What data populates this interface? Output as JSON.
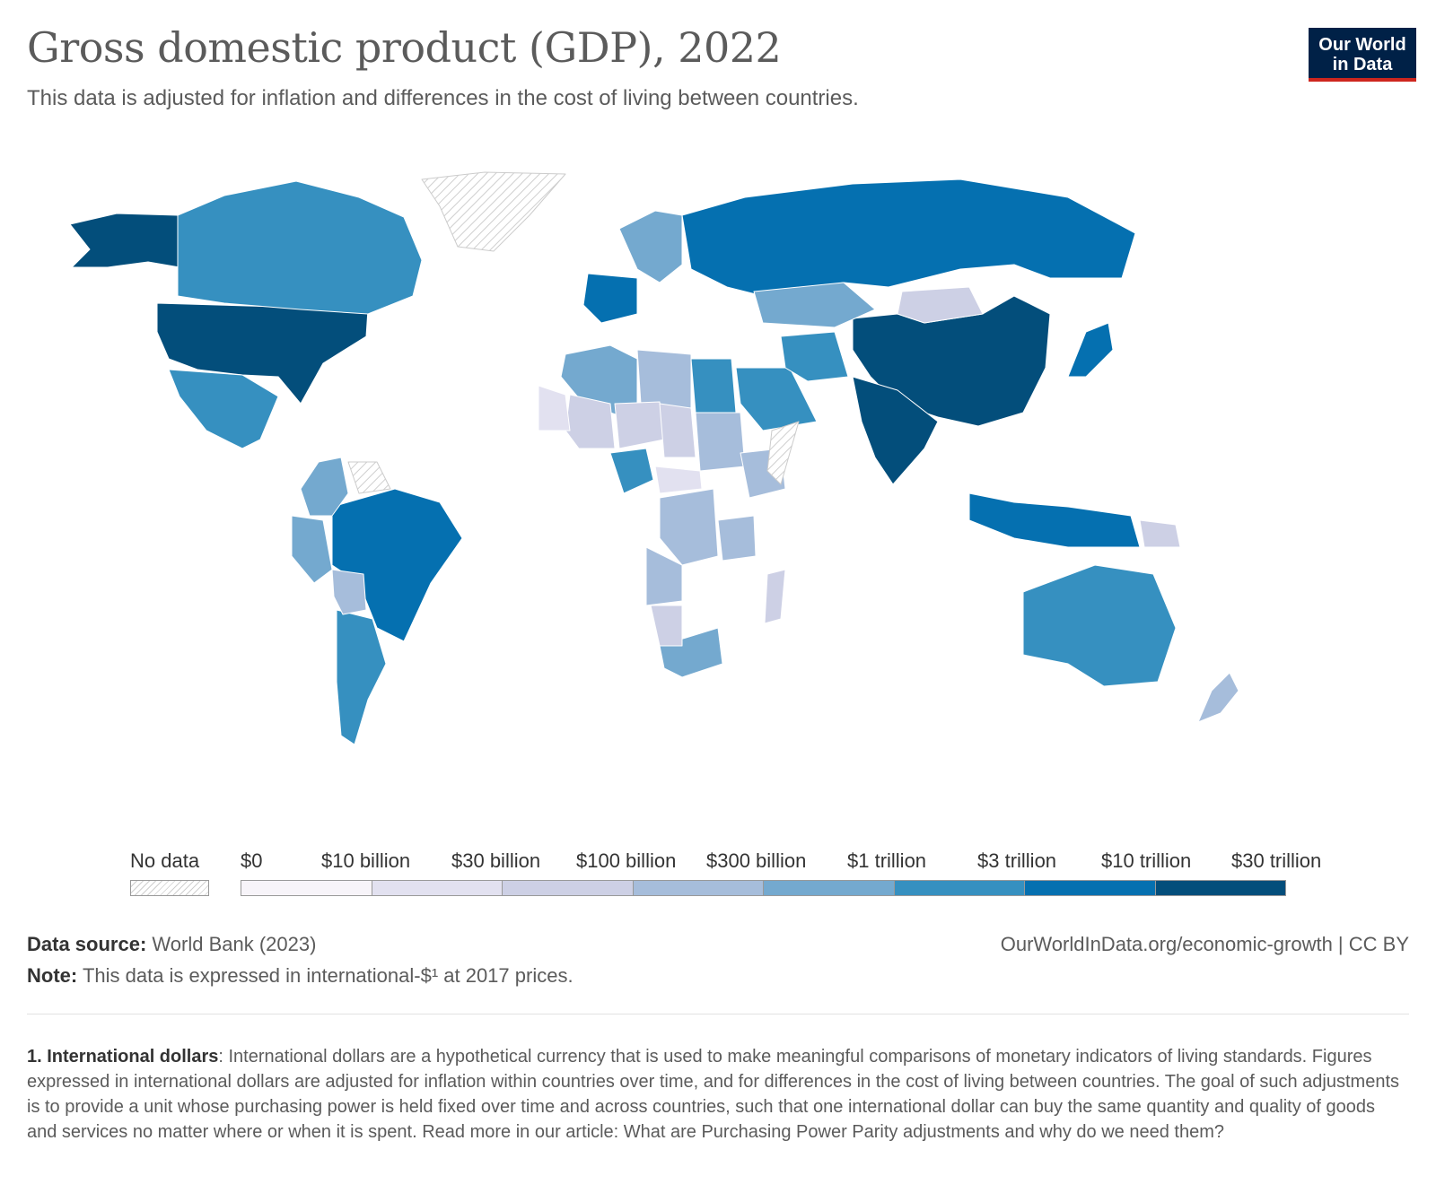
{
  "header": {
    "title": "Gross domestic product (GDP), 2022",
    "subtitle": "This data is adjusted for inflation and differences in the cost of living between countries.",
    "logo_line1": "Our World",
    "logo_line2": "in Data"
  },
  "legend": {
    "no_data_label": "No data",
    "bins": [
      {
        "label": "$0",
        "color": "#f7f4f9"
      },
      {
        "label": "$10 billion",
        "color": "#e2e1f0"
      },
      {
        "label": "$30 billion",
        "color": "#cdd0e5"
      },
      {
        "label": "$100 billion",
        "color": "#a6bddb"
      },
      {
        "label": "$300 billion",
        "color": "#74a9cf"
      },
      {
        "label": "$1 trillion",
        "color": "#3690c0"
      },
      {
        "label": "$3 trillion",
        "color": "#0570b0"
      },
      {
        "label": "$10 trillion",
        "color": "#034e7b"
      }
    ],
    "last_label": "$30 trillion"
  },
  "footer": {
    "source_label": "Data source:",
    "source_value": "World Bank (2023)",
    "note_label": "Note:",
    "note_value": "This data is expressed in international-$¹ at 2017 prices.",
    "url": "OurWorldInData.org/economic-growth | CC BY",
    "footnote_label": "1. International dollars",
    "footnote_text": ": International dollars are a hypothetical currency that is used to make meaningful comparisons of monetary indicators of living standards. Figures expressed in international dollars are adjusted for inflation within countries over time, and for differences in the cost of living between countries. The goal of such adjustments is to provide a unit whose purchasing power is held fixed over time and across countries, such that one international dollar can buy the same quantity and quality of goods and services no matter where or when it is spent. Read more in our article: What are Purchasing Power Parity adjustments and why do we need them?"
  },
  "map_data": {
    "type": "choropleth",
    "regions": [
      {
        "name": "United States",
        "bin": 7,
        "color": "#034e7b"
      },
      {
        "name": "China",
        "bin": 7,
        "color": "#034e7b"
      },
      {
        "name": "India",
        "bin": 7,
        "color": "#034e7b"
      },
      {
        "name": "Alaska",
        "bin": 7,
        "color": "#034e7b"
      },
      {
        "name": "Russia",
        "bin": 6,
        "color": "#0570b0"
      },
      {
        "name": "Brazil",
        "bin": 6,
        "color": "#0570b0"
      },
      {
        "name": "Japan",
        "bin": 6,
        "color": "#0570b0"
      },
      {
        "name": "Germany",
        "bin": 6,
        "color": "#0570b0"
      },
      {
        "name": "Indonesia",
        "bin": 6,
        "color": "#0570b0"
      },
      {
        "name": "Canada",
        "bin": 5,
        "color": "#3690c0"
      },
      {
        "name": "Mexico",
        "bin": 5,
        "color": "#3690c0"
      },
      {
        "name": "Australia",
        "bin": 5,
        "color": "#3690c0"
      },
      {
        "name": "Argentina",
        "bin": 5,
        "color": "#3690c0"
      },
      {
        "name": "Saudi Arabia",
        "bin": 5,
        "color": "#3690c0"
      },
      {
        "name": "Iran",
        "bin": 5,
        "color": "#3690c0"
      },
      {
        "name": "Egypt",
        "bin": 5,
        "color": "#3690c0"
      },
      {
        "name": "Nigeria",
        "bin": 5,
        "color": "#3690c0"
      },
      {
        "name": "Kazakhstan",
        "bin": 4,
        "color": "#74a9cf"
      },
      {
        "name": "Algeria",
        "bin": 4,
        "color": "#74a9cf"
      },
      {
        "name": "South Africa",
        "bin": 4,
        "color": "#74a9cf"
      },
      {
        "name": "Peru",
        "bin": 4,
        "color": "#74a9cf"
      },
      {
        "name": "Colombia",
        "bin": 4,
        "color": "#74a9cf"
      },
      {
        "name": "Scandinavia",
        "bin": 4,
        "color": "#74a9cf"
      },
      {
        "name": "Libya",
        "bin": 3,
        "color": "#a6bddb"
      },
      {
        "name": "Sudan",
        "bin": 3,
        "color": "#a6bddb"
      },
      {
        "name": "DR Congo",
        "bin": 3,
        "color": "#a6bddb"
      },
      {
        "name": "Angola",
        "bin": 3,
        "color": "#a6bddb"
      },
      {
        "name": "Tanzania",
        "bin": 3,
        "color": "#a6bddb"
      },
      {
        "name": "Ethiopia",
        "bin": 3,
        "color": "#a6bddb"
      },
      {
        "name": "Bolivia",
        "bin": 3,
        "color": "#a6bddb"
      },
      {
        "name": "New Zealand",
        "bin": 3,
        "color": "#a6bddb"
      },
      {
        "name": "Mongolia",
        "bin": 2,
        "color": "#cdd0e5"
      },
      {
        "name": "Mali",
        "bin": 2,
        "color": "#cdd0e5"
      },
      {
        "name": "Niger",
        "bin": 2,
        "color": "#cdd0e5"
      },
      {
        "name": "Chad",
        "bin": 2,
        "color": "#cdd0e5"
      },
      {
        "name": "Namibia",
        "bin": 2,
        "color": "#cdd0e5"
      },
      {
        "name": "Madagascar",
        "bin": 2,
        "color": "#cdd0e5"
      },
      {
        "name": "Papua New Guinea",
        "bin": 2,
        "color": "#cdd0e5"
      },
      {
        "name": "Mauritania",
        "bin": 1,
        "color": "#e2e1f0"
      },
      {
        "name": "Central African Republic",
        "bin": 1,
        "color": "#e2e1f0"
      },
      {
        "name": "Greenland",
        "bin": -1,
        "color": "nodata"
      },
      {
        "name": "Somalia",
        "bin": -1,
        "color": "nodata"
      },
      {
        "name": "Venezuela",
        "bin": -1,
        "color": "nodata"
      }
    ]
  }
}
